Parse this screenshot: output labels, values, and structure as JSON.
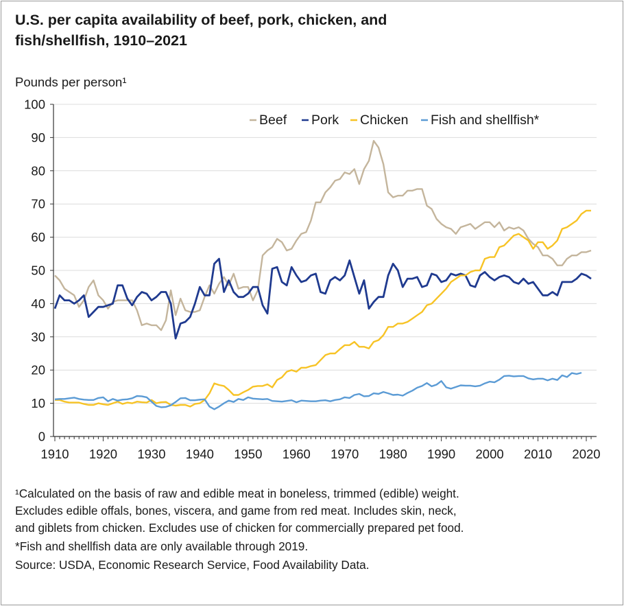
{
  "title_line1": "U.S. per capita availability of beef, pork, chicken, and",
  "title_line2": "fish/shellfish, 1910–2021",
  "footnotes": [
    "¹Calculated on the basis of raw and edible meat in boneless, trimmed (edible) weight.",
    "Excludes edible offals, bones, viscera, and game from red meat. Includes skin, neck,",
    "and giblets from chicken. Excludes use of chicken for commercially prepared pet food.",
    "*Fish and shellfish data are only available through 2019.",
    "Source: USDA, Economic Research Service, Food Availability Data."
  ],
  "chart_data": {
    "type": "line",
    "title": "U.S. per capita availability of beef, pork, chicken, and fish/shellfish, 1910–2021",
    "ylabel": "Pounds per person¹",
    "xlabel": "",
    "xlim": [
      1910,
      2021
    ],
    "ylim": [
      0,
      100
    ],
    "xticks": [
      "1910",
      "1920",
      "1930",
      "1940",
      "1950",
      "1960",
      "1970",
      "1980",
      "1990",
      "2000",
      "2010",
      "2020"
    ],
    "yticks": [
      "0",
      "10",
      "20",
      "30",
      "40",
      "50",
      "60",
      "70",
      "80",
      "90",
      "100"
    ],
    "grid": true,
    "legend_position": "top-right",
    "x_start": 1910,
    "series": [
      {
        "name": "Beef",
        "color": "#c4b59c",
        "values": [
          48.5,
          47,
          44.5,
          43.5,
          42.5,
          39,
          41,
          45,
          47,
          42.5,
          41,
          38.5,
          40.5,
          41,
          41,
          41,
          41,
          38,
          33.5,
          34,
          33.5,
          33.5,
          32,
          35,
          44,
          36.5,
          41.5,
          38,
          37.5,
          37.5,
          38,
          42,
          45.5,
          43,
          46,
          48,
          45.5,
          49,
          44.5,
          45,
          45,
          41,
          44,
          54.5,
          56,
          57,
          59.5,
          58.5,
          56,
          56.5,
          59,
          61,
          61.5,
          65,
          70.5,
          70.5,
          73.5,
          75,
          77,
          77.5,
          79.5,
          79,
          80.5,
          76,
          80.5,
          83,
          89,
          87,
          82,
          73.5,
          72,
          72.5,
          72.5,
          74,
          74,
          74.5,
          74.5,
          69.5,
          68.5,
          65.5,
          64,
          63,
          62.5,
          61,
          63,
          63.5,
          64,
          62.5,
          63.5,
          64.5,
          64.5,
          63,
          64.5,
          62,
          63,
          62.5,
          63,
          62,
          59.5,
          58,
          57,
          54.5,
          54.5,
          53.5,
          51.5,
          51.5,
          53.5,
          54.5,
          54.5,
          55.5,
          55.5,
          56
        ]
      },
      {
        "name": "Pork",
        "color": "#1f3a8f",
        "values": [
          38.5,
          42.5,
          41,
          41,
          40,
          41,
          42.5,
          36,
          37.5,
          39,
          39,
          39.5,
          40,
          45.5,
          45.5,
          41.5,
          39.5,
          42,
          43.5,
          43,
          41,
          42,
          43.5,
          43.5,
          40,
          29.5,
          34,
          34.5,
          36,
          40,
          45,
          42.5,
          42.5,
          52,
          53.5,
          43.5,
          47,
          43.5,
          42,
          42,
          43,
          45,
          45,
          39.5,
          37,
          50.5,
          51,
          46.5,
          45.5,
          51,
          48.5,
          46.5,
          47,
          48.5,
          49,
          43.5,
          43,
          47,
          48,
          47,
          48.5,
          53,
          48,
          43,
          47,
          38.5,
          40.5,
          42,
          42,
          48.5,
          52,
          50,
          45,
          47.5,
          47.5,
          48,
          45,
          45.5,
          49,
          48.5,
          46.5,
          47,
          49,
          48.5,
          49,
          48.5,
          45.5,
          45,
          48.5,
          49.5,
          48,
          47,
          48,
          48.5,
          48,
          46.5,
          46,
          47.5,
          46,
          46.5,
          44.5,
          42.5,
          42.5,
          43.5,
          42.5,
          46.5,
          46.5,
          46.5,
          47.5,
          49,
          48.5,
          47.5
        ]
      },
      {
        "name": "Chicken",
        "color": "#f7c325",
        "values": [
          11,
          11,
          10.5,
          10.2,
          10.2,
          10.2,
          9.8,
          9.5,
          9.5,
          10,
          9.7,
          9.5,
          10,
          10.5,
          9.8,
          10.2,
          10,
          10.5,
          10.3,
          10.2,
          11,
          10,
          10.3,
          10.4,
          9.5,
          9.3,
          9.5,
          9.5,
          9,
          9.8,
          10,
          11,
          13,
          16,
          15.5,
          15.2,
          14,
          12.5,
          12.5,
          13.3,
          14,
          15,
          15.2,
          15.2,
          15.7,
          14.8,
          17,
          17.8,
          19.5,
          20,
          19.5,
          20.7,
          20.7,
          21.2,
          21.5,
          23,
          24.5,
          25,
          25,
          26.3,
          27.5,
          27.5,
          28.5,
          27,
          27,
          26.5,
          28.5,
          29,
          30.5,
          33,
          33,
          34,
          34,
          34.5,
          35.5,
          36.5,
          37.5,
          39.5,
          40,
          41.5,
          43,
          44.5,
          46.5,
          47.5,
          48.5,
          48.5,
          49.5,
          50,
          50,
          53.5,
          54,
          54,
          57,
          57.5,
          59,
          60.5,
          61,
          60,
          59,
          56.5,
          58.5,
          58.5,
          56.5,
          57.5,
          59,
          62.5,
          63,
          64,
          65,
          67,
          68,
          68
        ]
      },
      {
        "name": "Fish and shellfish*",
        "color": "#5b9bd5",
        "values": [
          11.2,
          11.3,
          11.3,
          11.5,
          11.7,
          11.3,
          11.1,
          11,
          11,
          11.6,
          11.8,
          10.6,
          11.3,
          10.8,
          11.1,
          11.2,
          11.5,
          12.2,
          12.1,
          11.8,
          10.5,
          9.2,
          8.8,
          8.9,
          9.4,
          10.4,
          11.5,
          11.6,
          10.9,
          10.9,
          11.1,
          11.2,
          9,
          8.2,
          9,
          10,
          10.8,
          10.4,
          11.3,
          11,
          11.8,
          11.4,
          11.3,
          11.2,
          11.3,
          10.7,
          10.6,
          10.5,
          10.7,
          10.9,
          10.3,
          10.8,
          10.7,
          10.6,
          10.6,
          10.8,
          10.9,
          10.6,
          11,
          11.2,
          11.8,
          11.6,
          12.5,
          12.8,
          12.1,
          12.2,
          13,
          12.8,
          13.4,
          13,
          12.5,
          12.6,
          12.3,
          13.1,
          13.8,
          14.7,
          15.2,
          16.1,
          15.1,
          15.6,
          16.7,
          14.8,
          14.4,
          14.9,
          15.4,
          15.3,
          15.3,
          15.1,
          15.3,
          16,
          16.5,
          16.3,
          17.1,
          18.2,
          18.3,
          18.1,
          18.2,
          18.2,
          17.5,
          17.2,
          17.4,
          17.4,
          16.9,
          17.4,
          17,
          18.4,
          17.9,
          19.1,
          18.8,
          19.2
        ]
      }
    ]
  }
}
